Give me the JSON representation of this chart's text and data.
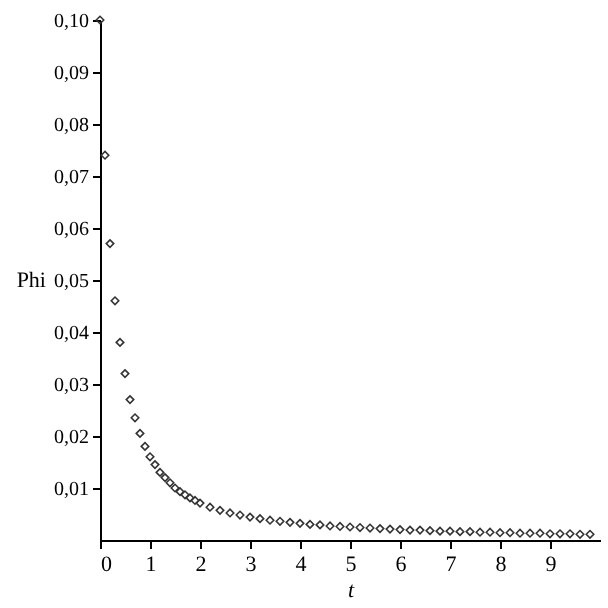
{
  "chart_data": {
    "type": "scatter",
    "xlabel": "t",
    "ylabel": "Phi",
    "marker": "diamond",
    "grid": false,
    "xlim": [
      0,
      10
    ],
    "xticks": [
      0,
      1,
      2,
      3,
      4,
      5,
      6,
      7,
      8,
      9
    ],
    "ylim": [
      0,
      0.1
    ],
    "yticks": [
      {
        "value": 0.01,
        "label": "0,01"
      },
      {
        "value": 0.02,
        "label": "0,02"
      },
      {
        "value": 0.03,
        "label": "0,03"
      },
      {
        "value": 0.04,
        "label": "0,04"
      },
      {
        "value": 0.05,
        "label": "0,05"
      },
      {
        "value": 0.06,
        "label": "0,06"
      },
      {
        "value": 0.07,
        "label": "0,07"
      },
      {
        "value": 0.08,
        "label": "0,08"
      },
      {
        "value": 0.09,
        "label": "0,09"
      },
      {
        "value": 0.1,
        "label": "0,10"
      }
    ],
    "series": [
      {
        "color": "#333333",
        "x": [
          0,
          0.1,
          0.2,
          0.3,
          0.4,
          0.5,
          0.6,
          0.7,
          0.8,
          0.9,
          1.0,
          1.1,
          1.2,
          1.3,
          1.4,
          1.5,
          1.6,
          1.7,
          1.8,
          1.9,
          2.0,
          2.2,
          2.4,
          2.6,
          2.8,
          3.0,
          3.2,
          3.4,
          3.6,
          3.8,
          4.0,
          4.2,
          4.4,
          4.6,
          4.8,
          5.0,
          5.2,
          5.4,
          5.6,
          5.8,
          6.0,
          6.2,
          6.4,
          6.6,
          6.8,
          7.0,
          7.2,
          7.4,
          7.6,
          7.8,
          8.0,
          8.2,
          8.4,
          8.6,
          8.8,
          9.0,
          9.2,
          9.4,
          9.6,
          9.8
        ],
        "values": [
          0.1,
          0.074,
          0.057,
          0.046,
          0.038,
          0.032,
          0.027,
          0.0235,
          0.0205,
          0.018,
          0.016,
          0.0145,
          0.013,
          0.012,
          0.011,
          0.01,
          0.0093,
          0.0087,
          0.0081,
          0.0076,
          0.0071,
          0.0063,
          0.0057,
          0.0052,
          0.0048,
          0.0044,
          0.0041,
          0.0038,
          0.0036,
          0.0034,
          0.0032,
          0.003,
          0.0029,
          0.0027,
          0.0026,
          0.0025,
          0.0024,
          0.0023,
          0.0022,
          0.0021,
          0.002,
          0.0019,
          0.0019,
          0.0018,
          0.0017,
          0.0017,
          0.0016,
          0.0016,
          0.0015,
          0.0015,
          0.0014,
          0.0014,
          0.0013,
          0.0013,
          0.0013,
          0.0012,
          0.0012,
          0.0012,
          0.0011,
          0.0011
        ]
      }
    ]
  }
}
